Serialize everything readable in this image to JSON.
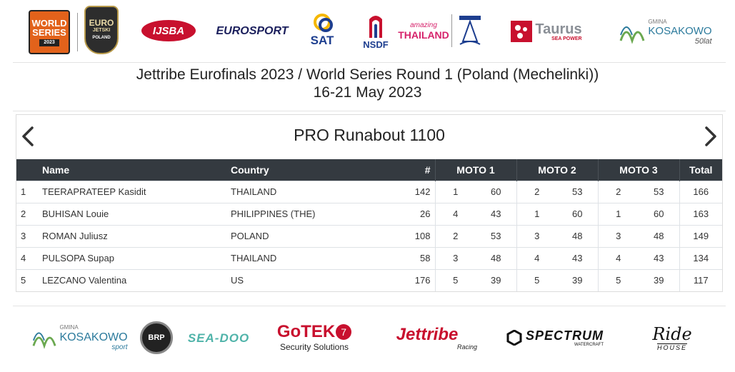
{
  "sponsors_top": {
    "wsr_line1": "WORLD",
    "wsr_line2": "SERIES",
    "wsr_year": "2023",
    "euro_line1": "EURO",
    "euro_line2": "JETSKI",
    "euro_line3": "POLAND",
    "ijsba": "IJSBA",
    "eurosport": "EUROSPORT",
    "sat": "SAT",
    "nsdf": "NSDF",
    "amazing": "amazing",
    "thailand": "THAILAND",
    "taurus": "Taurus",
    "taurus_sub": "SEA POWER",
    "gmina": "GMINA",
    "kosakowo": "KOSAKOWO",
    "fifty": "50lat"
  },
  "event": {
    "title": "Jettribe Eurofinals 2023 / World Series Round 1 (Poland (Mechelinki))",
    "dates": "16-21 May 2023"
  },
  "results": {
    "class_title": "PRO Runabout 1100",
    "headers": {
      "name": "Name",
      "country": "Country",
      "number": "#",
      "moto1": "MOTO 1",
      "moto2": "MOTO 2",
      "moto3": "MOTO 3",
      "total": "Total"
    },
    "rows": [
      {
        "pos": "1",
        "name": "TEERAPRATEEP Kasidit",
        "country": "THAILAND",
        "num": "142",
        "m1p": "1",
        "m1s": "60",
        "m2p": "2",
        "m2s": "53",
        "m3p": "2",
        "m3s": "53",
        "total": "166"
      },
      {
        "pos": "2",
        "name": "BUHISAN Louie",
        "country": "PHILIPPINES (THE)",
        "num": "26",
        "m1p": "4",
        "m1s": "43",
        "m2p": "1",
        "m2s": "60",
        "m3p": "1",
        "m3s": "60",
        "total": "163"
      },
      {
        "pos": "3",
        "name": "ROMAN Juliusz",
        "country": "POLAND",
        "num": "108",
        "m1p": "2",
        "m1s": "53",
        "m2p": "3",
        "m2s": "48",
        "m3p": "3",
        "m3s": "48",
        "total": "149"
      },
      {
        "pos": "4",
        "name": "PULSOPA Supap",
        "country": "THAILAND",
        "num": "58",
        "m1p": "3",
        "m1s": "48",
        "m2p": "4",
        "m2s": "43",
        "m3p": "4",
        "m3s": "43",
        "total": "134"
      },
      {
        "pos": "5",
        "name": "LEZCANO Valentina",
        "country": "US",
        "num": "176",
        "m1p": "5",
        "m1s": "39",
        "m2p": "5",
        "m2s": "39",
        "m3p": "5",
        "m3s": "39",
        "total": "117"
      }
    ]
  },
  "sponsors_bottom": {
    "gmina": "GMINA",
    "kosakowo": "KOSAKOWO",
    "sport": "sport",
    "brp": "BRP",
    "seadoo": "SEA-DOO",
    "gotek": "GoTEK",
    "gotek_7": "7",
    "gotek_sub": "Security Solutions",
    "jettribe": "Jettribe",
    "jettribe_sub": "Racing",
    "spectrum": "SPECTRUM",
    "spectrum_sub": "WATERCRAFT",
    "ride": "Ride",
    "ride_sub": "HOUSE"
  }
}
